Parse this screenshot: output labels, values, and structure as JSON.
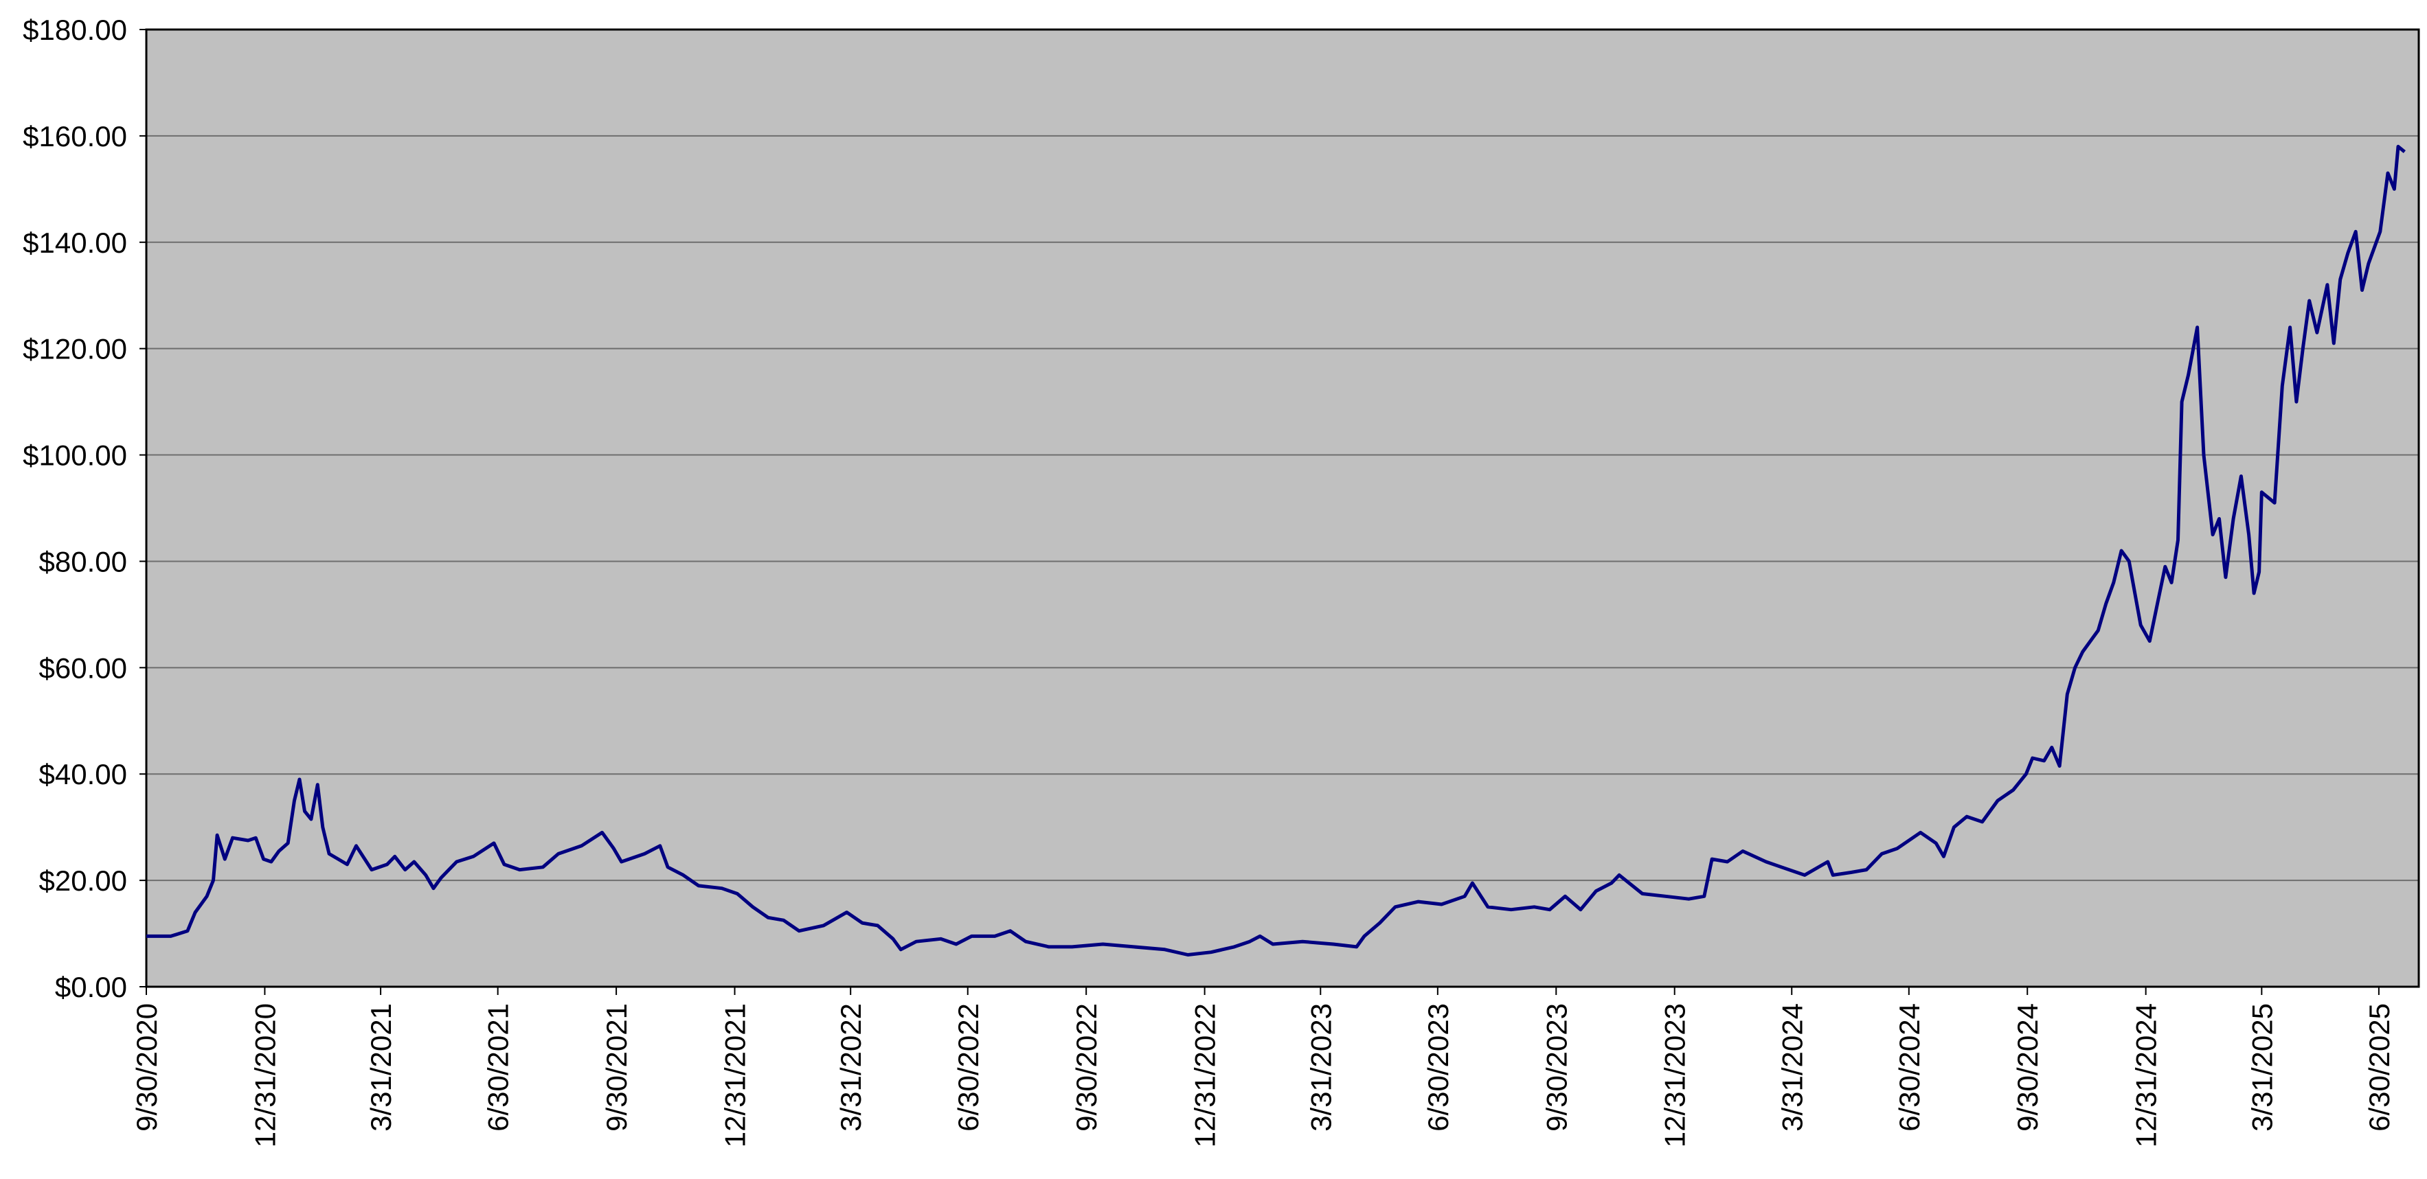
{
  "chart_data": {
    "type": "line",
    "x": [
      "9/30/2020",
      "10/19/2020",
      "11/1/2020",
      "11/7/2020",
      "11/16/2020",
      "11/21/2020",
      "11/24/2020",
      "11/30/2020",
      "12/6/2020",
      "12/18/2020",
      "12/24/2020",
      "12/30/2020",
      "1/5/2021",
      "1/11/2021",
      "1/18/2021",
      "1/23/2021",
      "1/27/2021",
      "1/31/2021",
      "2/5/2021",
      "2/10/2021",
      "2/14/2021",
      "2/19/2021",
      "2/26/2021",
      "3/5/2021",
      "3/12/2021",
      "3/24/2021",
      "4/5/2021",
      "4/11/2021",
      "4/19/2021",
      "4/26/2021",
      "5/5/2021",
      "5/11/2021",
      "5/17/2021",
      "5/29/2021",
      "6/11/2021",
      "6/27/2021",
      "7/5/2021",
      "7/17/2021",
      "8/4/2021",
      "8/16/2021",
      "9/3/2021",
      "9/19/2021",
      "9/28/2021",
      "10/4/2021",
      "10/22/2021",
      "11/3/2021",
      "11/9/2021",
      "11/21/2021",
      "12/3/2021",
      "12/21/2021",
      "1/2/2022",
      "1/14/2022",
      "1/26/2022",
      "2/7/2022",
      "2/19/2022",
      "3/10/2022",
      "3/28/2022",
      "4/9/2022",
      "4/21/2022",
      "5/3/2022",
      "5/9/2022",
      "5/21/2022",
      "6/9/2022",
      "6/21/2022",
      "7/3/2022",
      "7/21/2022",
      "8/2/2022",
      "8/14/2022",
      "9/1/2022",
      "9/19/2022",
      "10/13/2022",
      "11/6/2022",
      "11/30/2022",
      "12/18/2022",
      "1/5/2023",
      "1/23/2023",
      "2/4/2023",
      "2/12/2023",
      "2/22/2023",
      "3/17/2023",
      "4/10/2023",
      "4/28/2023",
      "5/4/2023",
      "5/16/2023",
      "5/28/2023",
      "6/15/2023",
      "7/3/2023",
      "7/21/2023",
      "7/27/2023",
      "8/8/2023",
      "8/26/2023",
      "9/13/2023",
      "9/25/2023",
      "10/7/2023",
      "10/19/2023",
      "10/31/2023",
      "11/12/2023",
      "11/18/2023",
      "12/6/2023",
      "12/24/2023",
      "1/11/2024",
      "1/23/2024",
      "1/29/2024",
      "2/10/2024",
      "2/22/2024",
      "3/11/2024",
      "3/23/2024",
      "4/10/2024",
      "4/28/2024",
      "5/2/2024",
      "5/16/2024",
      "5/28/2024",
      "6/9/2024",
      "6/21/2024",
      "7/9/2024",
      "7/21/2024",
      "7/27/2024",
      "8/4/2024",
      "8/14/2024",
      "8/26/2024",
      "9/7/2024",
      "9/19/2024",
      "9/29/2024",
      "10/4/2024",
      "10/13/2024",
      "10/19/2024",
      "10/25/2024",
      "10/31/2024",
      "11/6/2024",
      "11/12/2024",
      "11/24/2024",
      "11/30/2024",
      "12/6/2024",
      "12/12/2024",
      "12/18/2024",
      "12/27/2024",
      "1/3/2025",
      "1/9/2025",
      "1/15/2025",
      "1/20/2025",
      "1/25/2025",
      "1/28/2025",
      "2/2/2025",
      "2/9/2025",
      "2/14/2025",
      "2/21/2025",
      "2/26/2025",
      "3/3/2025",
      "3/9/2025",
      "3/15/2025",
      "3/21/2025",
      "3/25/2025",
      "3/29/2025",
      "3/31/2025",
      "4/10/2025",
      "4/16/2025",
      "4/22/2025",
      "4/27/2025",
      "5/2/2025",
      "5/7/2025",
      "5/13/2025",
      "5/21/2025",
      "5/26/2025",
      "5/31/2025",
      "6/6/2025",
      "6/12/2025",
      "6/17/2025",
      "6/22/2025",
      "7/1/2025",
      "7/7/2025",
      "7/12/2025",
      "7/15/2025",
      "7/20/2025"
    ],
    "series": [
      {
        "color": "#000080",
        "values": [
          9.5,
          9.5,
          10.5,
          14,
          17,
          20,
          28.5,
          24,
          28,
          27.5,
          28,
          24,
          23.5,
          25.5,
          27,
          35,
          39,
          33,
          31.5,
          38,
          30,
          25,
          24,
          23,
          26.5,
          22,
          23,
          24.5,
          22,
          23.5,
          21,
          18.5,
          20.5,
          23.5,
          24.5,
          27,
          23,
          22,
          22.5,
          25,
          26.5,
          29,
          26,
          23.5,
          25,
          26.5,
          22.5,
          21,
          19,
          18.5,
          17.5,
          15,
          13,
          12.5,
          10.5,
          11.5,
          14,
          12,
          11.5,
          9,
          7,
          8.5,
          9,
          8,
          9.5,
          9.5,
          10.5,
          8.5,
          7.5,
          7.5,
          8,
          7.5,
          7,
          6,
          6.5,
          7.5,
          8.5,
          9.5,
          8,
          8.5,
          8,
          7.5,
          9.5,
          12,
          15,
          16,
          15.5,
          17,
          19.5,
          15,
          14.5,
          15,
          14.5,
          17,
          14.5,
          18,
          19.5,
          21,
          17.5,
          17,
          16.5,
          17,
          24,
          23.5,
          25.5,
          23.5,
          22.5,
          21,
          23.5,
          21,
          21.5,
          22,
          25,
          26,
          29,
          27,
          24.5,
          30,
          32,
          31,
          35,
          37,
          40,
          43,
          42.5,
          45,
          41.5,
          55,
          60,
          63,
          67,
          72,
          76,
          82,
          80,
          68,
          65,
          72,
          79,
          76,
          84,
          110,
          115,
          124,
          100,
          85,
          88,
          77,
          88,
          96,
          85,
          74,
          78,
          93,
          91,
          113,
          124,
          110,
          120,
          129,
          123,
          132,
          121,
          133,
          138,
          142,
          131,
          136,
          142,
          153,
          150,
          158,
          157
        ]
      }
    ],
    "xlim": [
      "9/30/2020",
      "7/31/2025"
    ],
    "xticks": [
      "9/30/2020",
      "12/31/2020",
      "3/31/2021",
      "6/30/2021",
      "9/30/2021",
      "12/31/2021",
      "3/31/2022",
      "6/30/2022",
      "9/30/2022",
      "12/31/2022",
      "3/31/2023",
      "6/30/2023",
      "9/30/2023",
      "12/31/2023",
      "3/31/2024",
      "6/30/2024",
      "9/30/2024",
      "12/31/2024",
      "3/31/2025",
      "6/30/2025"
    ],
    "ylim": [
      0,
      180
    ],
    "yticks": [
      {
        "value": 0,
        "label": "$0.00"
      },
      {
        "value": 20,
        "label": "$20.00"
      },
      {
        "value": 40,
        "label": "$40.00"
      },
      {
        "value": 60,
        "label": "$60.00"
      },
      {
        "value": 80,
        "label": "$80.00"
      },
      {
        "value": 100,
        "label": "$100.00"
      },
      {
        "value": 120,
        "label": "$120.00"
      },
      {
        "value": 140,
        "label": "$140.00"
      },
      {
        "value": 160,
        "label": "$160.00"
      },
      {
        "value": 180,
        "label": "$180.00"
      }
    ],
    "grid": true
  }
}
